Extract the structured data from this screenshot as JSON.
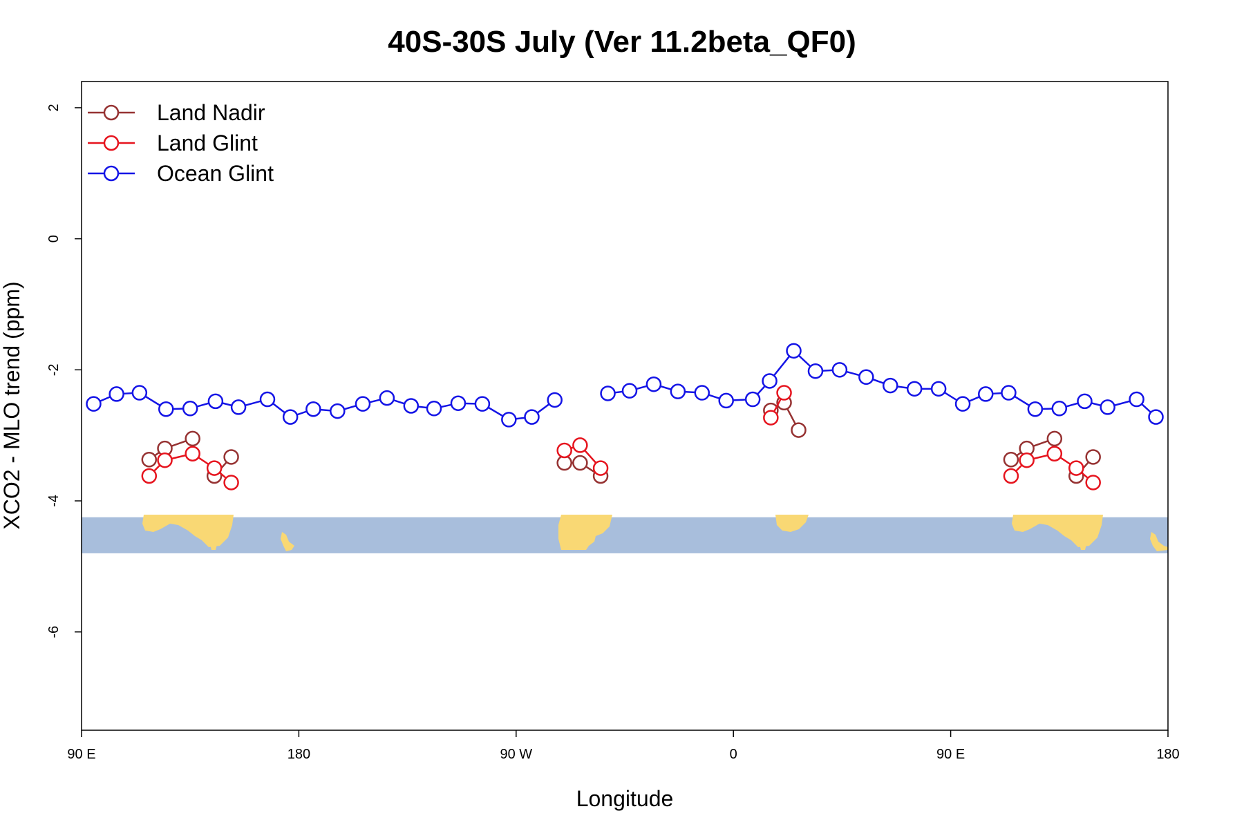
{
  "chart_data": {
    "type": "line",
    "title": "40S-30S July (Ver 11.2beta_QF0)",
    "xlabel": "Longitude",
    "ylabel": "XCO2 - MLO trend (ppm)",
    "xlim": [
      90,
      540
    ],
    "ylim": [
      -7.5,
      2.4
    ],
    "x_ticks": [
      {
        "value": 90,
        "label": "90 E"
      },
      {
        "value": 180,
        "label": "180"
      },
      {
        "value": 270,
        "label": "90 W"
      },
      {
        "value": 360,
        "label": "0"
      },
      {
        "value": 450,
        "label": "90 E"
      },
      {
        "value": 540,
        "label": "180"
      }
    ],
    "y_ticks": [
      {
        "value": 2,
        "label": "2"
      },
      {
        "value": 0,
        "label": "0"
      },
      {
        "value": -2,
        "label": "-2"
      },
      {
        "value": -4,
        "label": "-4"
      },
      {
        "value": -6,
        "label": "-6"
      }
    ],
    "grid": false,
    "legend_position": "top-left",
    "map_band": {
      "ymin": -4.8,
      "ymax": -4.25,
      "ocean_color": "#a8bedc",
      "land_color": "#f9d874"
    },
    "series": [
      {
        "name": "Land Nadir",
        "color": "#963232",
        "segments": [
          [
            [
              118,
              -3.37
            ],
            [
              124.5,
              -3.2
            ],
            [
              136,
              -3.05
            ]
          ],
          [
            [
              145,
              -3.62
            ],
            [
              152,
              -3.33
            ]
          ],
          [
            [
              290,
              -3.42
            ],
            [
              296.5,
              -3.42
            ],
            [
              305,
              -3.62
            ]
          ],
          [
            [
              375.5,
              -2.62
            ],
            [
              381,
              -2.5
            ],
            [
              387,
              -2.92
            ]
          ],
          [
            [
              475,
              -3.37
            ],
            [
              481.5,
              -3.2
            ],
            [
              493,
              -3.05
            ]
          ],
          [
            [
              502,
              -3.62
            ],
            [
              509,
              -3.33
            ]
          ]
        ]
      },
      {
        "name": "Land Glint",
        "color": "#e6141e",
        "segments": [
          [
            [
              118,
              -3.62
            ],
            [
              124.5,
              -3.38
            ],
            [
              136,
              -3.28
            ],
            [
              145,
              -3.5
            ],
            [
              152,
              -3.72
            ]
          ],
          [
            [
              290,
              -3.23
            ],
            [
              296.5,
              -3.15
            ],
            [
              305,
              -3.5
            ]
          ],
          [
            [
              375.5,
              -2.73
            ],
            [
              381,
              -2.35
            ]
          ],
          [
            [
              475,
              -3.62
            ],
            [
              481.5,
              -3.38
            ],
            [
              493,
              -3.28
            ],
            [
              502,
              -3.5
            ],
            [
              509,
              -3.72
            ]
          ]
        ]
      },
      {
        "name": "Ocean Glint",
        "color": "#1414e6",
        "segments": [
          [
            [
              95,
              -2.52
            ],
            [
              104.5,
              -2.37
            ],
            [
              114,
              -2.35
            ],
            [
              125,
              -2.6
            ],
            [
              135,
              -2.59
            ],
            [
              145.5,
              -2.48
            ],
            [
              155,
              -2.57
            ],
            [
              167,
              -2.45
            ],
            [
              176.5,
              -2.72
            ],
            [
              186,
              -2.6
            ],
            [
              196,
              -2.63
            ],
            [
              206.5,
              -2.52
            ],
            [
              216.5,
              -2.43
            ],
            [
              226.5,
              -2.55
            ],
            [
              236,
              -2.59
            ],
            [
              246,
              -2.51
            ],
            [
              256,
              -2.52
            ],
            [
              267,
              -2.76
            ],
            [
              276.5,
              -2.72
            ],
            [
              286,
              -2.46
            ]
          ],
          [
            [
              308,
              -2.36
            ],
            [
              317,
              -2.32
            ],
            [
              327,
              -2.22
            ],
            [
              337,
              -2.33
            ],
            [
              347,
              -2.35
            ],
            [
              357,
              -2.47
            ],
            [
              368,
              -2.45
            ],
            [
              375,
              -2.17
            ],
            [
              385,
              -1.71
            ],
            [
              394,
              -2.02
            ],
            [
              404,
              -2.0
            ],
            [
              415,
              -2.11
            ],
            [
              425,
              -2.24
            ],
            [
              435,
              -2.29
            ],
            [
              445,
              -2.29
            ],
            [
              455,
              -2.52
            ],
            [
              464.5,
              -2.37
            ],
            [
              474,
              -2.35
            ],
            [
              485,
              -2.6
            ],
            [
              495,
              -2.59
            ],
            [
              505.5,
              -2.48
            ],
            [
              515,
              -2.57
            ],
            [
              527,
              -2.45
            ],
            [
              535,
              -2.72
            ]
          ]
        ]
      }
    ]
  }
}
